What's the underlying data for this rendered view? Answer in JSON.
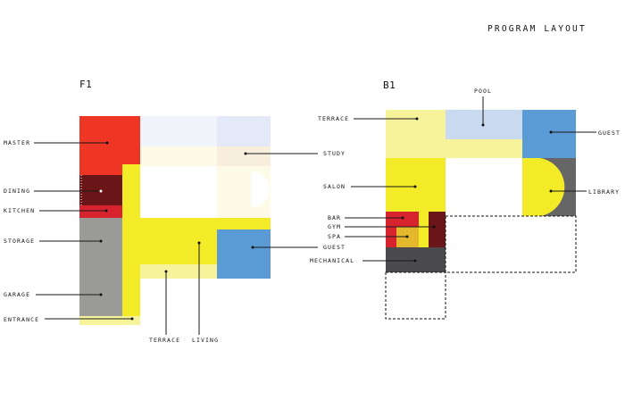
{
  "title": "PROGRAM LAYOUT",
  "floors": {
    "f1": {
      "label": "F1"
    },
    "b1": {
      "label": "B1"
    }
  },
  "f1_labels": {
    "master": "MASTER",
    "dining": "DINING",
    "kitchen": "KITCHEN",
    "storage": "STORAGE",
    "garage": "GARAGE",
    "entrance": "ENTRANCE",
    "study": "STUDY",
    "guest": "GUEST",
    "terrace": "TERRACE",
    "living": "LIVING"
  },
  "b1_labels": {
    "terrace": "TERRACE",
    "pool": "POOL",
    "guest": "GUEST",
    "salon": "SALON",
    "library": "LIBRARY",
    "bar": "BAR",
    "gym": "GYM",
    "spa": "SPA",
    "mechanical": "MECHANICAL"
  },
  "colors": {
    "red": "#ef3524",
    "dark_red": "#6a1517",
    "yellow": "#f3ea28",
    "pale_yellow": "#f6f39b",
    "blue": "#5a9bd6",
    "pale_blue": "#c9d9f0",
    "gray": "#9a9a98",
    "dark_gray": "#4b4b4d",
    "mid_gray": "#666667"
  }
}
